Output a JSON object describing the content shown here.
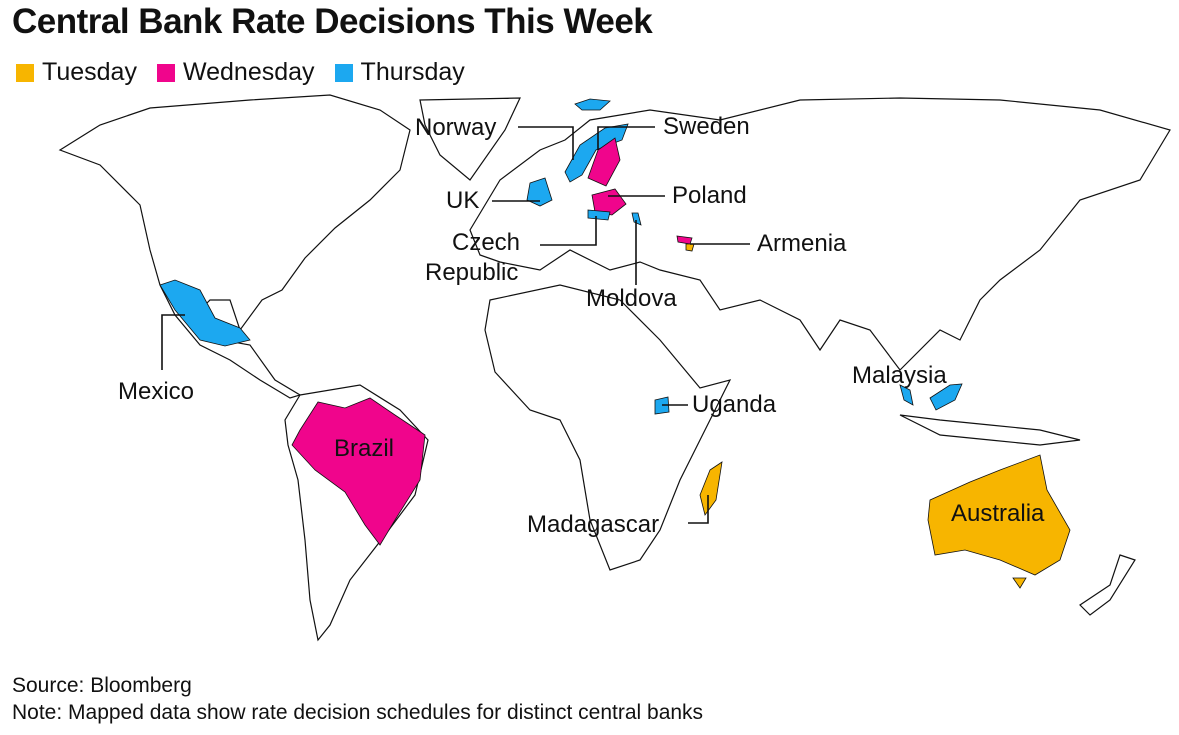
{
  "title": "Central Bank Rate Decisions This Week",
  "legend": [
    {
      "label": "Tuesday",
      "color": "#F7B500"
    },
    {
      "label": "Wednesday",
      "color": "#F0058C"
    },
    {
      "label": "Thursday",
      "color": "#1CA8F0"
    }
  ],
  "countries": {
    "norway": {
      "label": "Norway",
      "day": "Thursday"
    },
    "sweden": {
      "label": "Sweden",
      "day": "Wednesday"
    },
    "uk": {
      "label": "UK",
      "day": "Thursday"
    },
    "poland": {
      "label": "Poland",
      "day": "Wednesday"
    },
    "czech": {
      "label": "Czech Republic",
      "line1": "Czech",
      "line2": "Republic",
      "day": "Thursday"
    },
    "armenia": {
      "label": "Armenia",
      "day": "Tuesday"
    },
    "moldova": {
      "label": "Moldova",
      "day": "Thursday"
    },
    "mexico": {
      "label": "Mexico",
      "day": "Thursday"
    },
    "brazil": {
      "label": "Brazil",
      "day": "Wednesday"
    },
    "uganda": {
      "label": "Uganda",
      "day": "Thursday"
    },
    "malaysia": {
      "label": "Malaysia",
      "day": "Thursday"
    },
    "madagascar": {
      "label": "Madagascar",
      "day": "Tuesday"
    },
    "australia": {
      "label": "Australia",
      "day": "Tuesday"
    }
  },
  "footer": {
    "source": "Source: Bloomberg",
    "note": "Note: Mapped data show rate decision schedules for distinct central banks"
  }
}
